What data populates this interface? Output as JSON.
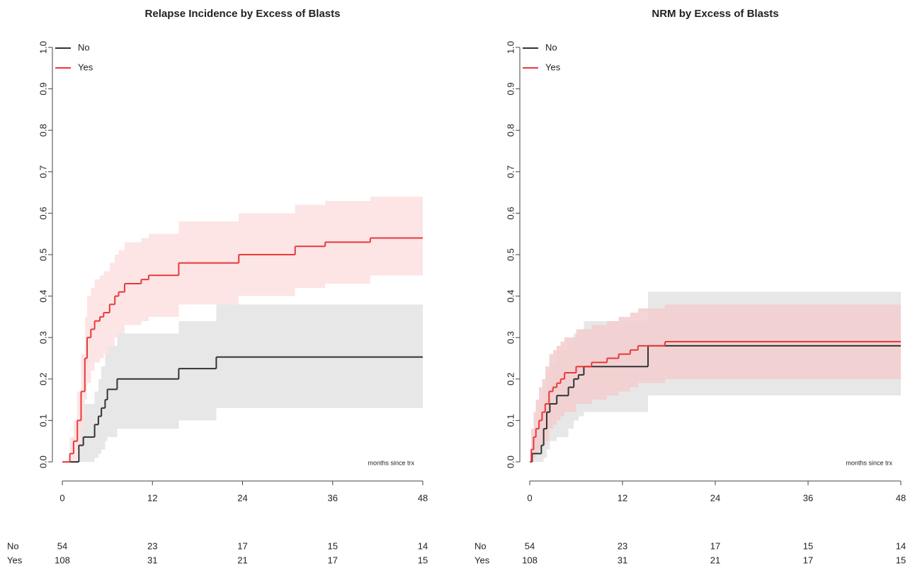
{
  "chart_data": [
    {
      "type": "step",
      "title": "Relapse Incidence by Excess of Blasts",
      "annotation": "months since trx",
      "xlim": [
        0,
        48
      ],
      "xticks": [
        0,
        12,
        24,
        36,
        48
      ],
      "ylim": [
        0,
        1
      ],
      "yticks": [
        {
          "value": 0,
          "label": "0.0"
        },
        0.1,
        0.2,
        0.3,
        0.4,
        0.5,
        0.6,
        0.7,
        0.8,
        0.9,
        {
          "value": 1,
          "label": "1.0"
        }
      ],
      "legend": "topleft",
      "series": [
        {
          "name": "No",
          "color": "#333333",
          "band_color": "#e3e3e3",
          "x": [
            0,
            2.2,
            2.8,
            4.3,
            4.8,
            5.2,
            5.7,
            6,
            7.3,
            15.5,
            20.5
          ],
          "values": [
            0,
            0.04,
            0.06,
            0.09,
            0.11,
            0.13,
            0.15,
            0.175,
            0.2,
            0.225,
            0.253
          ],
          "lower": [
            0,
            0,
            0,
            0.01,
            0.02,
            0.03,
            0.05,
            0.06,
            0.08,
            0.1,
            0.13
          ],
          "upper": [
            0,
            0.1,
            0.14,
            0.17,
            0.2,
            0.23,
            0.26,
            0.28,
            0.31,
            0.34,
            0.38
          ]
        },
        {
          "name": "Yes",
          "color": "#e8393b",
          "band_color": "#fde0e0",
          "x": [
            0,
            1,
            1.5,
            2,
            2.5,
            3,
            3.3,
            3.8,
            4.3,
            5,
            5.5,
            6.3,
            7,
            7.5,
            8.3,
            10.5,
            11.5,
            15.5,
            23.5,
            31,
            35,
            41
          ],
          "values": [
            0,
            0.02,
            0.05,
            0.1,
            0.17,
            0.25,
            0.3,
            0.32,
            0.34,
            0.35,
            0.36,
            0.38,
            0.4,
            0.41,
            0.43,
            0.44,
            0.45,
            0.48,
            0.5,
            0.52,
            0.53,
            0.54
          ],
          "lower": [
            0,
            0,
            0,
            0.03,
            0.08,
            0.15,
            0.19,
            0.22,
            0.24,
            0.25,
            0.26,
            0.28,
            0.3,
            0.31,
            0.33,
            0.34,
            0.35,
            0.38,
            0.4,
            0.42,
            0.43,
            0.45
          ],
          "upper": [
            0,
            0.06,
            0.1,
            0.17,
            0.26,
            0.35,
            0.4,
            0.42,
            0.44,
            0.45,
            0.46,
            0.48,
            0.5,
            0.51,
            0.53,
            0.54,
            0.55,
            0.58,
            0.6,
            0.62,
            0.63,
            0.64
          ]
        }
      ],
      "risk_table": [
        {
          "name": "No",
          "values": [
            54,
            23,
            17,
            15,
            14
          ]
        },
        {
          "name": "Yes",
          "values": [
            108,
            31,
            21,
            17,
            15
          ]
        }
      ]
    },
    {
      "type": "step",
      "title": "NRM by Excess of Blasts",
      "annotation": "months since trx",
      "xlim": [
        0,
        48
      ],
      "xticks": [
        0,
        12,
        24,
        36,
        48
      ],
      "ylim": [
        0,
        1
      ],
      "yticks": [
        {
          "value": 0,
          "label": "0.0"
        },
        0.1,
        0.2,
        0.3,
        0.4,
        0.5,
        0.6,
        0.7,
        0.8,
        0.9,
        {
          "value": 1,
          "label": "1.0"
        }
      ],
      "legend": "topleft",
      "series": [
        {
          "name": "No",
          "color": "#333333",
          "band_color": "#e3e3e3",
          "x": [
            0,
            0.3,
            1.5,
            1.8,
            2.2,
            2.6,
            3.5,
            5,
            5.7,
            6.3,
            7,
            15.3
          ],
          "values": [
            0,
            0.02,
            0.04,
            0.08,
            0.12,
            0.14,
            0.16,
            0.18,
            0.2,
            0.21,
            0.23,
            0.28
          ],
          "lower": [
            0,
            0,
            0,
            0.01,
            0.03,
            0.05,
            0.06,
            0.08,
            0.1,
            0.11,
            0.12,
            0.16
          ],
          "upper": [
            0,
            0.06,
            0.1,
            0.16,
            0.22,
            0.24,
            0.27,
            0.29,
            0.31,
            0.32,
            0.34,
            0.41
          ]
        },
        {
          "name": "Yes",
          "color": "#e8393b",
          "band_color": "#f2cccc",
          "x": [
            0,
            0.2,
            0.5,
            0.8,
            1.2,
            1.6,
            2,
            2.5,
            3,
            3.5,
            4,
            4.5,
            6,
            8,
            10,
            11.5,
            13,
            14,
            17.5
          ],
          "values": [
            0,
            0.03,
            0.06,
            0.08,
            0.1,
            0.12,
            0.14,
            0.17,
            0.18,
            0.19,
            0.2,
            0.215,
            0.23,
            0.24,
            0.25,
            0.26,
            0.27,
            0.28,
            0.29
          ],
          "lower": [
            0,
            0,
            0.01,
            0.02,
            0.03,
            0.04,
            0.05,
            0.08,
            0.09,
            0.1,
            0.11,
            0.12,
            0.14,
            0.15,
            0.16,
            0.17,
            0.18,
            0.19,
            0.2
          ],
          "upper": [
            0,
            0.08,
            0.12,
            0.15,
            0.18,
            0.2,
            0.23,
            0.26,
            0.27,
            0.28,
            0.29,
            0.3,
            0.32,
            0.33,
            0.34,
            0.35,
            0.36,
            0.37,
            0.38
          ]
        }
      ],
      "risk_table": [
        {
          "name": "No",
          "values": [
            54,
            23,
            17,
            15,
            14
          ]
        },
        {
          "name": "Yes",
          "values": [
            108,
            31,
            21,
            17,
            15
          ]
        }
      ]
    }
  ]
}
